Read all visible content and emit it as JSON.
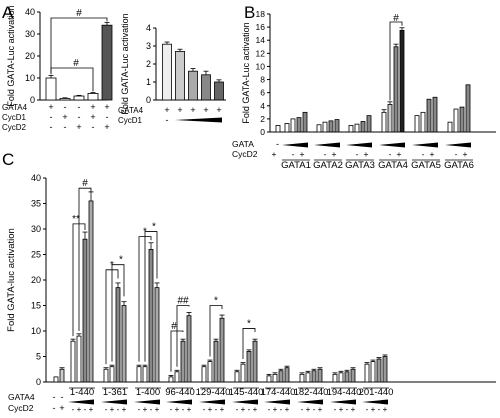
{
  "panels": {
    "A": "A",
    "B": "B",
    "C": "C"
  },
  "chart_data": [
    {
      "panel": "A",
      "type": "bar",
      "ylabel": "Fold GATA-Luc activation",
      "ylim": [
        0,
        40
      ],
      "yticks": [
        "0",
        "10",
        "20",
        "30",
        "40"
      ],
      "values": [
        10.0,
        0.7,
        1.8,
        3.0,
        34.0
      ],
      "errors": [
        1.2,
        0.3,
        0.3,
        0.4,
        1.3
      ],
      "bar_colors": [
        "#ffffff",
        "#ffffff",
        "#ffffff",
        "#ffffff",
        "#555555"
      ],
      "row_labels": [
        "GATA4",
        "CycD1",
        "CycD2"
      ],
      "rows": [
        [
          "+",
          "-",
          "-",
          "+",
          "+"
        ],
        [
          "-",
          "+",
          "-",
          "+",
          "-"
        ],
        [
          "-",
          "-",
          "+",
          "-",
          "+"
        ]
      ],
      "annotations": [
        "#",
        "#"
      ]
    },
    {
      "panel": "A-inset",
      "type": "bar",
      "ylabel": "Fold GATA-Luc activation",
      "ylim": [
        0,
        4
      ],
      "yticks": [
        "0",
        "1",
        "2",
        "3",
        "4"
      ],
      "values": [
        3.1,
        2.7,
        1.6,
        1.4,
        1.0
      ],
      "errors": [
        0.12,
        0.12,
        0.15,
        0.2,
        0.12
      ],
      "bar_colors": [
        "#eeeeee",
        "#cccccc",
        "#aaaaaa",
        "#888888",
        "#666666"
      ],
      "row_labels": [
        "GATA4",
        "CycD1"
      ],
      "gata4_signs": [
        "+",
        "+",
        "+",
        "+",
        "+"
      ],
      "cycd1_signs": [
        "-"
      ]
    },
    {
      "panel": "B",
      "type": "bar",
      "ylabel": "Fold GATA-Luc activation",
      "ylim": [
        0,
        18
      ],
      "yticks": [
        "0",
        "2",
        "4",
        "6",
        "8",
        "10",
        "12",
        "14",
        "16",
        "18"
      ],
      "categories": [
        "GATA1",
        "GATA2",
        "GATA3",
        "GATA4",
        "GATA5",
        "GATA6"
      ],
      "row_labels": [
        "GATA",
        "CycD2"
      ],
      "cycd2_signs": [
        "+",
        "-",
        "+",
        "-",
        "+",
        "-",
        "+",
        "-",
        "+",
        "-",
        "+",
        "-",
        "+"
      ],
      "control_value": 1.0,
      "groups": [
        [
          1.3,
          2.0,
          2.2,
          3.0
        ],
        [
          1.1,
          1.5,
          1.7,
          1.9
        ],
        [
          1.0,
          1.2,
          1.6,
          2.5
        ],
        [
          3.0,
          4.2,
          13.0,
          15.5
        ],
        [
          2.5,
          3.0,
          5.0,
          5.3
        ],
        [
          1.5,
          3.5,
          3.8,
          7.2
        ]
      ],
      "annotations": [
        "#"
      ]
    },
    {
      "panel": "C",
      "type": "bar",
      "ylabel": "Fold GATA-luc activation",
      "ylim": [
        0,
        40
      ],
      "yticks": [
        "0",
        "5",
        "10",
        "15",
        "20",
        "25",
        "30",
        "35",
        "40"
      ],
      "categories": [
        "1-440",
        "1-361",
        "1-400",
        "96-440",
        "129-440",
        "145-440",
        "174-440",
        "182-440",
        "194-440",
        "201-440"
      ],
      "row_labels": [
        "GATA4",
        "CycD2"
      ],
      "controls": [
        1.0,
        2.5
      ],
      "control_signs": [
        "-",
        "-",
        "-",
        "+"
      ],
      "cycd2_signs": [
        "-",
        "+",
        "-",
        "+"
      ],
      "groups": [
        [
          8.0,
          9.0,
          28.0,
          35.5
        ],
        [
          2.5,
          3.0,
          18.5,
          15.0
        ],
        [
          3.0,
          3.0,
          26.0,
          18.5
        ],
        [
          1.0,
          2.0,
          8.0,
          13.0
        ],
        [
          3.0,
          4.0,
          8.0,
          12.5
        ],
        [
          2.0,
          3.5,
          6.0,
          8.0
        ],
        [
          1.2,
          1.5,
          2.2,
          2.8
        ],
        [
          1.5,
          1.8,
          2.2,
          2.5
        ],
        [
          1.5,
          1.8,
          2.0,
          2.5
        ],
        [
          3.5,
          4.0,
          4.5,
          5.0
        ]
      ],
      "annotations": [
        "**",
        "#",
        "*",
        "*",
        "*",
        "*",
        "#",
        "##",
        "*",
        "*"
      ]
    }
  ]
}
